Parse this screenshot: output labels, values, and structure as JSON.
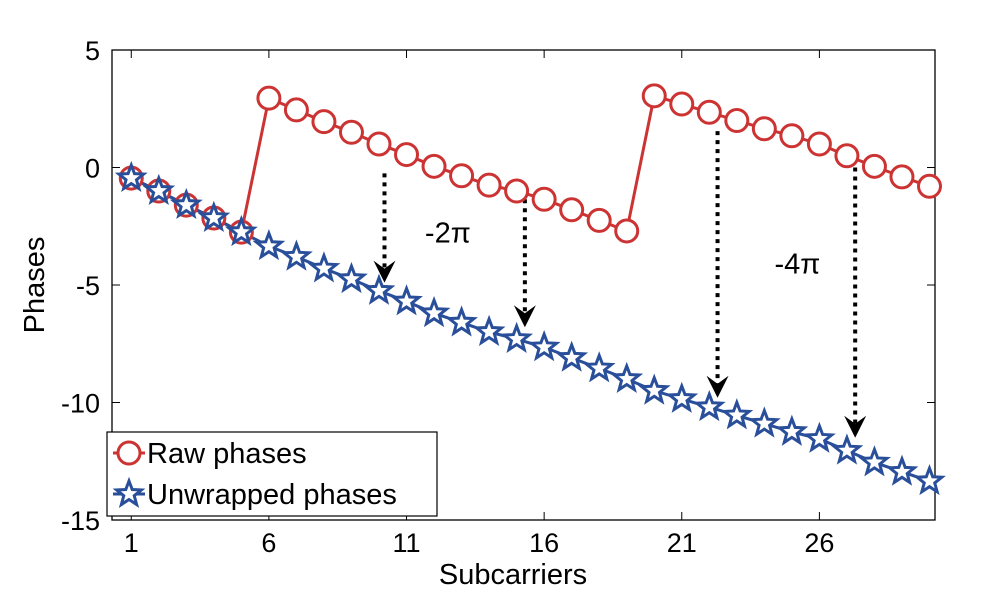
{
  "chart_data": {
    "type": "line",
    "title": "",
    "xlabel": "Subcarriers",
    "ylabel": "Phases",
    "xlim": [
      0.3,
      30.2
    ],
    "ylim": [
      -15,
      5
    ],
    "x_ticks": [
      1,
      6,
      11,
      16,
      21,
      26
    ],
    "y_ticks": [
      5,
      0,
      -5,
      -10,
      -15
    ],
    "grid": false,
    "legend_position": "bottom-left",
    "series": [
      {
        "name": "Raw phases",
        "color": "#cc3333",
        "marker": "circle",
        "x": [
          1,
          2,
          3,
          4,
          5,
          6,
          7,
          8,
          9,
          10,
          11,
          12,
          13,
          14,
          15,
          16,
          17,
          18,
          19,
          20,
          21,
          22,
          23,
          24,
          25,
          26,
          27,
          28,
          29,
          30
        ],
        "values": [
          -0.45,
          -1.0,
          -1.6,
          -2.15,
          -2.75,
          2.95,
          2.45,
          1.95,
          1.5,
          1.0,
          0.55,
          0.05,
          -0.35,
          -0.75,
          -1.0,
          -1.35,
          -1.8,
          -2.25,
          -2.7,
          3.05,
          2.7,
          2.35,
          2.0,
          1.65,
          1.35,
          1.0,
          0.5,
          0.05,
          -0.4,
          -0.8
        ]
      },
      {
        "name": "Unwrapped phases",
        "color": "#2a4f9a",
        "marker": "star",
        "x": [
          1,
          2,
          3,
          4,
          5,
          6,
          7,
          8,
          9,
          10,
          11,
          12,
          13,
          14,
          15,
          16,
          17,
          18,
          19,
          20,
          21,
          22,
          23,
          24,
          25,
          26,
          27,
          28,
          29,
          30
        ],
        "values": [
          -0.45,
          -1.0,
          -1.6,
          -2.15,
          -2.75,
          -3.35,
          -3.8,
          -4.3,
          -4.75,
          -5.25,
          -5.7,
          -6.2,
          -6.6,
          -7.0,
          -7.3,
          -7.65,
          -8.1,
          -8.55,
          -9.0,
          -9.5,
          -9.85,
          -10.2,
          -10.55,
          -10.9,
          -11.25,
          -11.55,
          -12.05,
          -12.55,
          -12.95,
          -13.35
        ]
      }
    ],
    "annotations": [
      {
        "text": "-2π",
        "x": 12.5,
        "y": -3.2
      },
      {
        "text": "-4π",
        "x": 25.2,
        "y": -4.5
      }
    ],
    "shift_arrows": [
      {
        "x": 10.2,
        "y_from": -0.25,
        "y_to": -4.9
      },
      {
        "x": 15.3,
        "y_from": -1.35,
        "y_to": -6.8
      },
      {
        "x": 22.3,
        "y_from": 1.55,
        "y_to": -9.8
      },
      {
        "x": 27.3,
        "y_from": 0.0,
        "y_to": -11.5
      }
    ]
  }
}
